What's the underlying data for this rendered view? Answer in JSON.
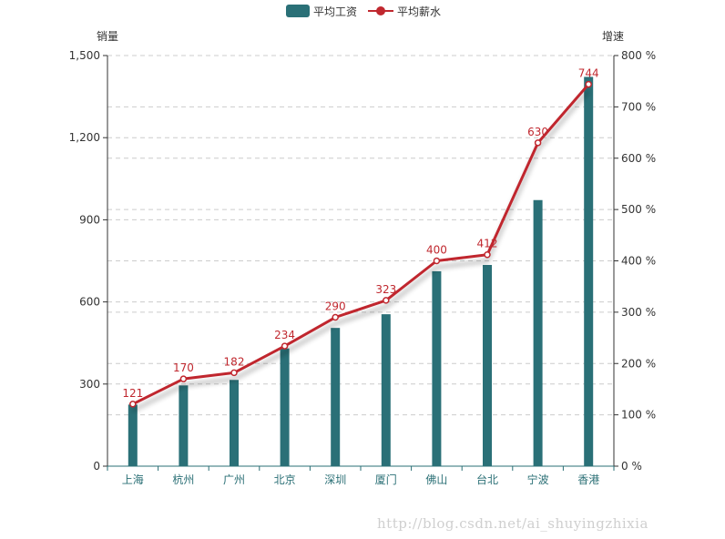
{
  "chart_data": {
    "type": "bar",
    "categories": [
      "上海",
      "杭州",
      "广州",
      "北京",
      "深圳",
      "厦门",
      "佛山",
      "台北",
      "宁波",
      "香港"
    ],
    "series": [
      {
        "name": "平均工资",
        "type": "bar",
        "axis": "left",
        "color": "#2a7077",
        "values": [
          225,
          295,
          315,
          430,
          505,
          555,
          712,
          735,
          972,
          1422
        ]
      },
      {
        "name": "平均薪水",
        "type": "line",
        "axis": "right",
        "color": "#c0282f",
        "values": [
          121,
          170,
          182,
          234,
          290,
          323,
          400,
          412,
          630,
          744
        ],
        "labels": [
          "121",
          "170",
          "182",
          "234",
          "290",
          "323",
          "400",
          "412",
          "630",
          "744"
        ]
      }
    ],
    "y_left": {
      "title": "销量",
      "min": 0,
      "max": 1500,
      "ticks": [
        "0",
        "300",
        "600",
        "900",
        "1,200",
        "1,500"
      ]
    },
    "y_right": {
      "title": "增速",
      "min": 0,
      "max": 800,
      "ticks": [
        "0 %",
        "100 %",
        "200 %",
        "300 %",
        "400 %",
        "500 %",
        "600 %",
        "700 %",
        "800 %"
      ]
    },
    "grid": true,
    "legend": "top-center"
  },
  "watermark": "http://blog.csdn.net/ai_shuyingzhixia"
}
